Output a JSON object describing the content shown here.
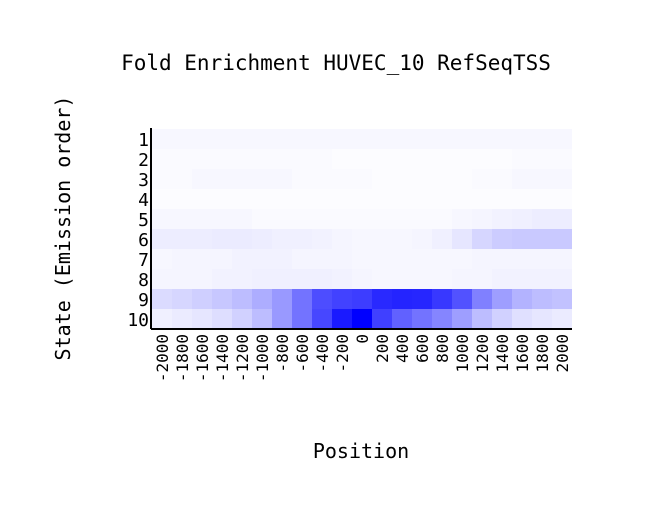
{
  "chart_data": {
    "type": "heatmap",
    "title": "Fold Enrichment HUVEC_10 RefSeqTSS",
    "xlabel": "Position",
    "ylabel": "State (Emission order)",
    "x_categories": [
      "-2000",
      "-1800",
      "-1600",
      "-1400",
      "-1200",
      "-1000",
      "-800",
      "-600",
      "-400",
      "-200",
      "0",
      "200",
      "400",
      "600",
      "800",
      "1000",
      "1200",
      "1400",
      "1600",
      "1800",
      "2000"
    ],
    "y_categories": [
      "1",
      "2",
      "3",
      "4",
      "5",
      "6",
      "7",
      "8",
      "9",
      "10"
    ],
    "color_low": "#ffffff",
    "color_high": "#0000ff",
    "values": [
      [
        0.03,
        0.03,
        0.03,
        0.03,
        0.03,
        0.03,
        0.03,
        0.03,
        0.03,
        0.03,
        0.03,
        0.03,
        0.03,
        0.03,
        0.03,
        0.03,
        0.03,
        0.03,
        0.03,
        0.03,
        0.03
      ],
      [
        0.02,
        0.02,
        0.02,
        0.02,
        0.02,
        0.02,
        0.02,
        0.02,
        0.02,
        0.01,
        0.01,
        0.01,
        0.01,
        0.01,
        0.01,
        0.01,
        0.01,
        0.01,
        0.02,
        0.02,
        0.02
      ],
      [
        0.02,
        0.02,
        0.03,
        0.03,
        0.03,
        0.03,
        0.03,
        0.02,
        0.02,
        0.02,
        0.02,
        0.01,
        0.01,
        0.01,
        0.01,
        0.01,
        0.02,
        0.02,
        0.03,
        0.03,
        0.03
      ],
      [
        0.01,
        0.01,
        0.01,
        0.01,
        0.01,
        0.01,
        0.01,
        0.01,
        0.01,
        0.01,
        0.01,
        0.01,
        0.01,
        0.01,
        0.01,
        0.01,
        0.01,
        0.01,
        0.01,
        0.01,
        0.01
      ],
      [
        0.03,
        0.03,
        0.03,
        0.03,
        0.03,
        0.02,
        0.02,
        0.02,
        0.02,
        0.02,
        0.02,
        0.02,
        0.02,
        0.02,
        0.02,
        0.03,
        0.04,
        0.05,
        0.06,
        0.07,
        0.07
      ],
      [
        0.07,
        0.07,
        0.07,
        0.08,
        0.08,
        0.07,
        0.06,
        0.06,
        0.05,
        0.04,
        0.03,
        0.03,
        0.03,
        0.04,
        0.06,
        0.1,
        0.16,
        0.2,
        0.21,
        0.21,
        0.21
      ],
      [
        0.03,
        0.04,
        0.04,
        0.04,
        0.05,
        0.05,
        0.05,
        0.04,
        0.04,
        0.04,
        0.03,
        0.03,
        0.03,
        0.03,
        0.03,
        0.03,
        0.04,
        0.04,
        0.04,
        0.04,
        0.04
      ],
      [
        0.04,
        0.04,
        0.04,
        0.05,
        0.05,
        0.06,
        0.06,
        0.06,
        0.06,
        0.05,
        0.04,
        0.03,
        0.03,
        0.03,
        0.03,
        0.04,
        0.04,
        0.05,
        0.05,
        0.05,
        0.05
      ],
      [
        0.14,
        0.16,
        0.19,
        0.22,
        0.26,
        0.32,
        0.4,
        0.55,
        0.7,
        0.74,
        0.76,
        0.84,
        0.86,
        0.85,
        0.78,
        0.68,
        0.5,
        0.38,
        0.3,
        0.26,
        0.24
      ],
      [
        0.06,
        0.08,
        0.1,
        0.13,
        0.18,
        0.26,
        0.4,
        0.55,
        0.72,
        0.9,
        1.0,
        0.75,
        0.62,
        0.55,
        0.48,
        0.38,
        0.26,
        0.18,
        0.12,
        0.1,
        0.08
      ]
    ]
  }
}
